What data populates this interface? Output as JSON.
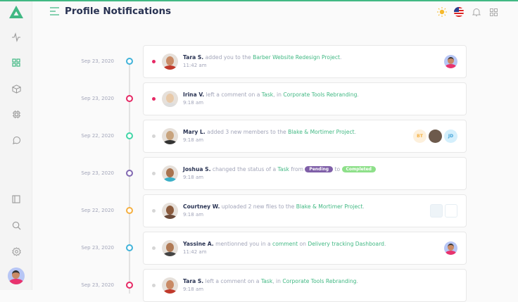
{
  "header": {
    "title": "Profile Notifications"
  },
  "colors": {
    "accent": "#41b883",
    "title": "#283252",
    "muted": "#a2a5b9",
    "pending": "#7f5fa8",
    "completed": "#8ee08a"
  },
  "notifications": [
    {
      "date": "Sep 23, 2020",
      "dot": "#41b3d9",
      "unread": true,
      "user": "Tara S.",
      "parts": [
        "added you to the ",
        "Barber Website Redesign Project",
        "."
      ],
      "time": "11:42 am",
      "right": "avatar"
    },
    {
      "date": "Sep 23, 2020",
      "dot": "#e62965",
      "unread": true,
      "user": "Irina V.",
      "parts": [
        "left a comment on a ",
        "Task",
        ", in ",
        "Corporate Tools Rebranding",
        "."
      ],
      "time": "9:18 am"
    },
    {
      "date": "Sep 22, 2020",
      "dot": "#41d6a7",
      "unread": false,
      "user": "Mary L.",
      "parts": [
        "added 3 new members to the ",
        "Blake & Mortimer Project",
        "."
      ],
      "time": "9:18 am",
      "members": [
        "BT",
        "",
        "JD"
      ]
    },
    {
      "date": "Sep 23, 2020",
      "dot": "#8269b2",
      "unread": false,
      "user": "Joshua S.",
      "parts": [
        "changed the status of a ",
        "Task",
        " from ",
        "Pending",
        " to ",
        "Completed"
      ],
      "time": "9:18 am"
    },
    {
      "date": "Sep 22, 2020",
      "dot": "#f5b041",
      "unread": false,
      "user": "Courtney W.",
      "parts": [
        "uploaded 2 new files to the ",
        "Blake & Mortimer Project",
        "."
      ],
      "time": "9:18 am",
      "right": "files"
    },
    {
      "date": "Sep 23, 2020",
      "dot": "#41b3d9",
      "unread": false,
      "user": "Yassine A.",
      "parts": [
        "mentionned you in a ",
        "comment",
        " on ",
        "Delivery tracking Dashboard",
        "."
      ],
      "time": "11:42 am",
      "right": "avatar"
    },
    {
      "date": "Sep 23, 2020",
      "dot": "#e62965",
      "unread": false,
      "user": "Tara S.",
      "parts": [
        "left a comment on a ",
        "Task",
        ", in ",
        "Corporate Tools Rebranding",
        "."
      ],
      "time": "9:18 am"
    }
  ]
}
